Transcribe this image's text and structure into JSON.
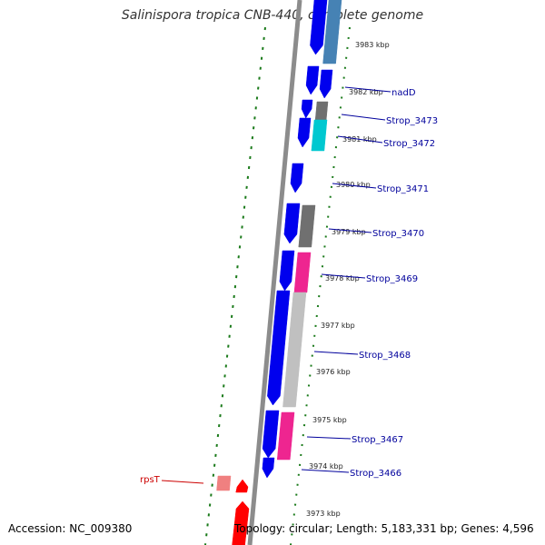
{
  "title": "Salinispora tropica CNB-440, complete genome",
  "accession": "Accession: NC_009380",
  "topology": "Topology: circular; Length: 5,183,331 bp; Genes: 4,596",
  "colors": {
    "backbone": "#8c8c8c",
    "dots": "#1a7a1a",
    "label_blue": "#00009c",
    "label_red": "#cc0000",
    "gene_blue": "#0000ee",
    "gene_gray": "#707070",
    "gene_light_gray": "#c0c0c0",
    "gene_magenta": "#ee2590",
    "gene_cyan": "#00c8d0",
    "gene_steel": "#4682b4",
    "gene_red": "#ff0000",
    "gene_pink": "#f08080"
  },
  "ticks": [
    "3983 kbp",
    "3982 kbp",
    "3981 kbp",
    "3980 kbp",
    "3979 kbp",
    "3978 kbp",
    "3977 kbp",
    "3976 kbp",
    "3975 kbp",
    "3974 kbp",
    "3973 kbp"
  ],
  "genes": [
    "nadD",
    "Strop_3473",
    "Strop_3472",
    "Strop_3471",
    "Strop_3470",
    "Strop_3469",
    "Strop_3468",
    "Strop_3467",
    "Strop_3466",
    "rpsT"
  ]
}
